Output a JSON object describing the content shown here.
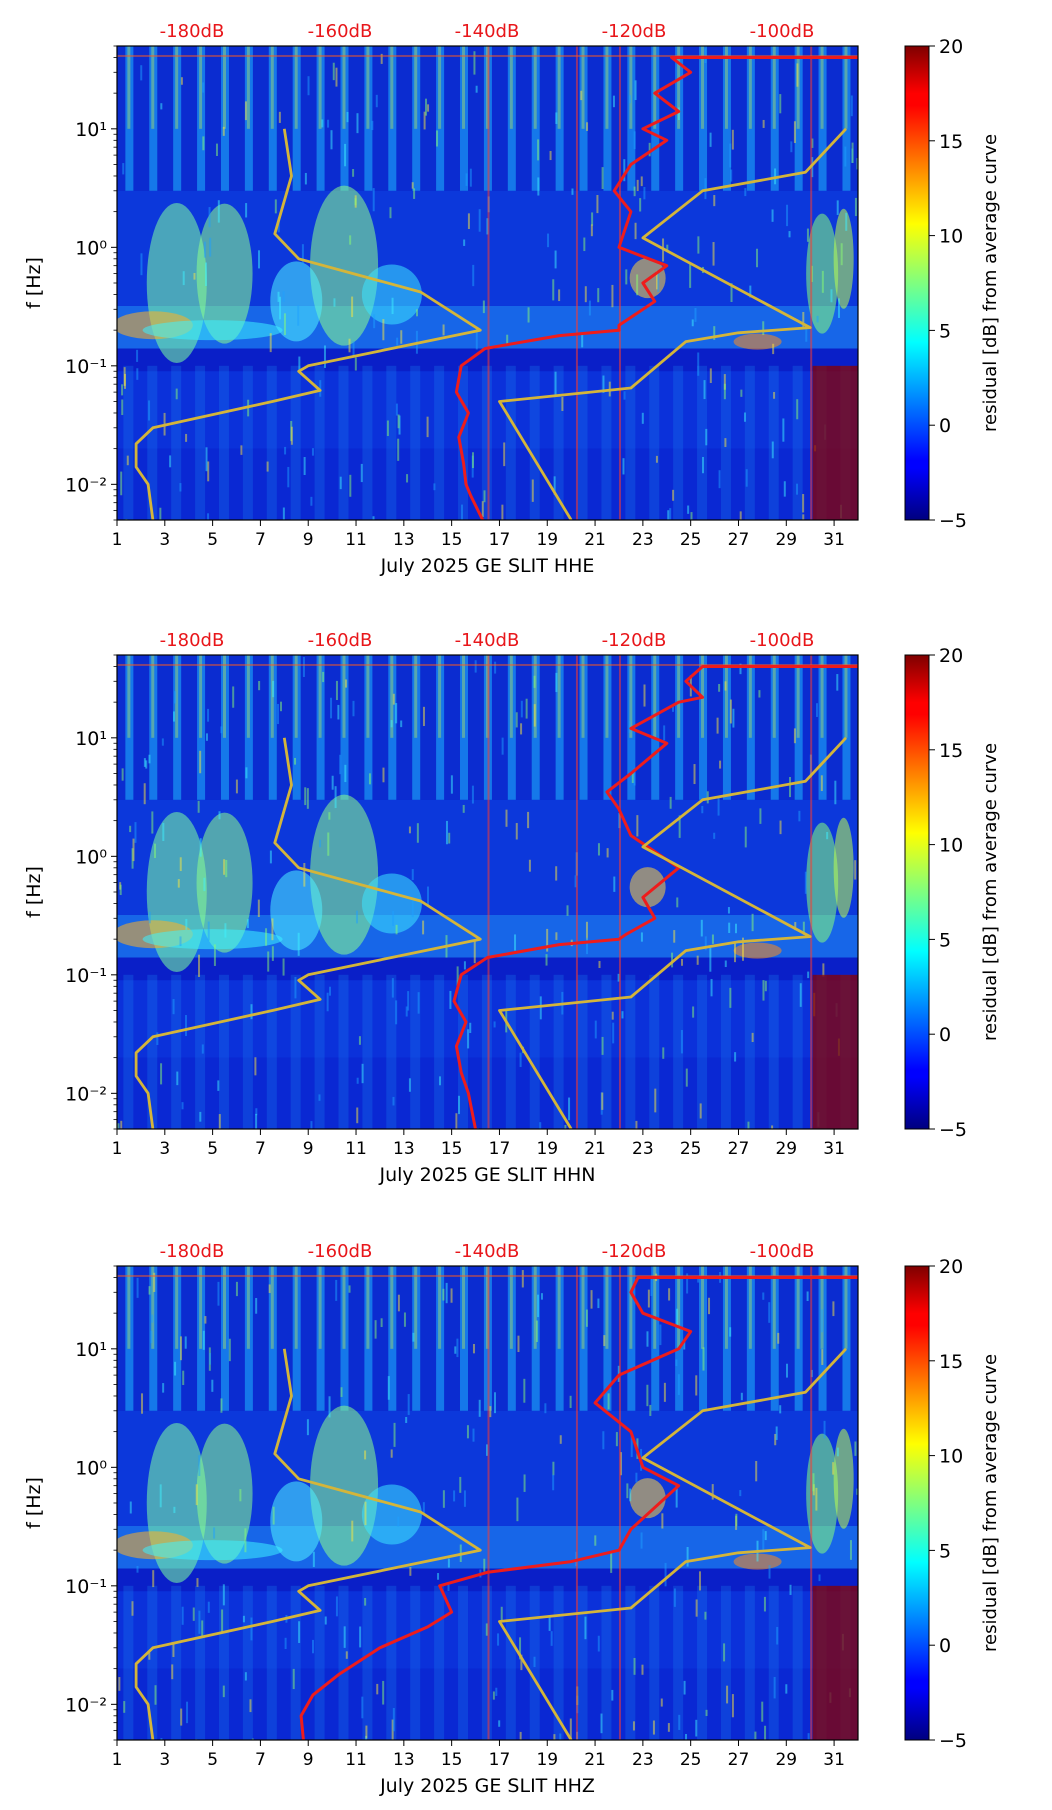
{
  "chart_data": [
    {
      "type": "heatmap",
      "xlabel": "July 2025 GE SLIT  HHE",
      "ylabel": "f [Hz]",
      "xticks": [
        "1",
        "3",
        "5",
        "7",
        "9",
        "11",
        "13",
        "15",
        "17",
        "19",
        "21",
        "23",
        "25",
        "27",
        "29",
        "31"
      ],
      "xlim": [
        1,
        32
      ],
      "yticks": [
        "10⁻²",
        "10⁻¹",
        "10⁰",
        "10¹"
      ],
      "ylim": [
        0.005,
        50
      ],
      "yscale": "log",
      "top_labels": [
        "-180dB",
        "-160dB",
        "-140dB",
        "-120dB",
        "-100dB"
      ],
      "colorbar": {
        "label": "residual [dB] from average curve",
        "ticks": [
          "−5",
          "0",
          "5",
          "10",
          "15",
          "20"
        ],
        "range": [
          -5,
          20
        ],
        "colormap": "jet"
      },
      "series": [
        {
          "color": "#d4b53a",
          "points": [
            [
              2.5,
              0.005
            ],
            [
              2.3,
              0.01
            ],
            [
              1.8,
              0.014
            ],
            [
              1.8,
              0.022
            ],
            [
              2.5,
              0.03
            ],
            [
              7.5,
              0.05
            ],
            [
              9.5,
              0.062
            ],
            [
              8.6,
              0.09
            ],
            [
              9.0,
              0.1
            ],
            [
              16.2,
              0.2
            ],
            [
              13.7,
              0.42
            ],
            [
              8.6,
              0.8
            ],
            [
              7.6,
              1.3
            ],
            [
              8.3,
              4.0
            ],
            [
              8.0,
              10.0
            ]
          ]
        },
        {
          "color": "#ee1c1c",
          "points": [
            [
              16.3,
              0.005
            ],
            [
              15.8,
              0.008
            ],
            [
              15.6,
              0.01
            ],
            [
              15.5,
              0.015
            ],
            [
              15.3,
              0.025
            ],
            [
              15.7,
              0.04
            ],
            [
              15.2,
              0.06
            ],
            [
              15.4,
              0.1
            ],
            [
              16.4,
              0.14
            ],
            [
              19.5,
              0.18
            ],
            [
              22.0,
              0.2
            ],
            [
              22.0,
              0.22
            ],
            [
              23.5,
              0.35
            ],
            [
              23.0,
              0.5
            ],
            [
              24.0,
              0.7
            ],
            [
              22.0,
              1.0
            ],
            [
              22.5,
              2.0
            ],
            [
              21.8,
              3.0
            ],
            [
              22.5,
              5.0
            ],
            [
              24.0,
              8.0
            ],
            [
              23.0,
              10.0
            ],
            [
              24.5,
              14.0
            ],
            [
              23.5,
              20.0
            ],
            [
              25.0,
              30.0
            ],
            [
              24.2,
              40.0
            ],
            [
              32,
              40.0
            ]
          ]
        },
        {
          "color": "#d4b53a",
          "points": [
            [
              20.0,
              0.005
            ],
            [
              17.0,
              0.05
            ],
            [
              22.5,
              0.065
            ],
            [
              24.8,
              0.16
            ],
            [
              27.0,
              0.19
            ],
            [
              30.0,
              0.21
            ],
            [
              23.0,
              1.2
            ],
            [
              25.5,
              3.0
            ],
            [
              29.8,
              4.3
            ],
            [
              31.5,
              10.0
            ]
          ]
        }
      ]
    },
    {
      "type": "heatmap",
      "xlabel": "July 2025 GE SLIT  HHN",
      "ylabel": "f [Hz]",
      "xticks": [
        "1",
        "3",
        "5",
        "7",
        "9",
        "11",
        "13",
        "15",
        "17",
        "19",
        "21",
        "23",
        "25",
        "27",
        "29",
        "31"
      ],
      "xlim": [
        1,
        32
      ],
      "yticks": [
        "10⁻²",
        "10⁻¹",
        "10⁰",
        "10¹"
      ],
      "ylim": [
        0.005,
        50
      ],
      "yscale": "log",
      "top_labels": [
        "-180dB",
        "-160dB",
        "-140dB",
        "-120dB",
        "-100dB"
      ],
      "colorbar": {
        "label": "residual [dB] from average curve",
        "ticks": [
          "−5",
          "0",
          "5",
          "10",
          "15",
          "20"
        ],
        "range": [
          -5,
          20
        ],
        "colormap": "jet"
      },
      "series": [
        {
          "color": "#d4b53a",
          "points": [
            [
              2.5,
              0.005
            ],
            [
              2.3,
              0.01
            ],
            [
              1.8,
              0.014
            ],
            [
              1.8,
              0.022
            ],
            [
              2.5,
              0.03
            ],
            [
              7.5,
              0.05
            ],
            [
              9.5,
              0.062
            ],
            [
              8.6,
              0.09
            ],
            [
              9.0,
              0.1
            ],
            [
              16.2,
              0.2
            ],
            [
              13.7,
              0.42
            ],
            [
              8.6,
              0.8
            ],
            [
              7.6,
              1.3
            ],
            [
              8.3,
              4.0
            ],
            [
              8.0,
              10.0
            ]
          ]
        },
        {
          "color": "#ee1c1c",
          "points": [
            [
              16.0,
              0.005
            ],
            [
              15.7,
              0.01
            ],
            [
              15.4,
              0.015
            ],
            [
              15.2,
              0.025
            ],
            [
              15.6,
              0.04
            ],
            [
              15.1,
              0.06
            ],
            [
              15.4,
              0.1
            ],
            [
              16.5,
              0.14
            ],
            [
              19.5,
              0.18
            ],
            [
              22.0,
              0.2
            ],
            [
              22.3,
              0.22
            ],
            [
              23.5,
              0.3
            ],
            [
              23.0,
              0.45
            ],
            [
              24.5,
              0.8
            ],
            [
              22.5,
              1.5
            ],
            [
              22.0,
              2.5
            ],
            [
              21.5,
              3.5
            ],
            [
              22.5,
              5.0
            ],
            [
              24.0,
              9.0
            ],
            [
              22.5,
              12.0
            ],
            [
              24.5,
              20.0
            ],
            [
              25.5,
              22.0
            ],
            [
              24.8,
              30.0
            ],
            [
              25.5,
              40.0
            ],
            [
              32,
              40.0
            ]
          ]
        },
        {
          "color": "#d4b53a",
          "points": [
            [
              20.0,
              0.005
            ],
            [
              17.0,
              0.05
            ],
            [
              22.5,
              0.065
            ],
            [
              24.8,
              0.16
            ],
            [
              27.0,
              0.19
            ],
            [
              30.0,
              0.21
            ],
            [
              23.0,
              1.2
            ],
            [
              25.5,
              3.0
            ],
            [
              29.8,
              4.3
            ],
            [
              31.5,
              10.0
            ]
          ]
        }
      ]
    },
    {
      "type": "heatmap",
      "xlabel": "July 2025 GE SLIT  HHZ",
      "ylabel": "f [Hz]",
      "xticks": [
        "1",
        "3",
        "5",
        "7",
        "9",
        "11",
        "13",
        "15",
        "17",
        "19",
        "21",
        "23",
        "25",
        "27",
        "29",
        "31"
      ],
      "xlim": [
        1,
        32
      ],
      "yticks": [
        "10⁻²",
        "10⁻¹",
        "10⁰",
        "10¹"
      ],
      "ylim": [
        0.005,
        50
      ],
      "yscale": "log",
      "top_labels": [
        "-180dB",
        "-160dB",
        "-140dB",
        "-120dB",
        "-100dB"
      ],
      "colorbar": {
        "label": "residual [dB] from average curve",
        "ticks": [
          "−5",
          "0",
          "5",
          "10",
          "15",
          "20"
        ],
        "range": [
          -5,
          20
        ],
        "colormap": "jet"
      },
      "series": [
        {
          "color": "#d4b53a",
          "points": [
            [
              2.5,
              0.005
            ],
            [
              2.3,
              0.01
            ],
            [
              1.8,
              0.014
            ],
            [
              1.8,
              0.022
            ],
            [
              2.5,
              0.03
            ],
            [
              7.5,
              0.05
            ],
            [
              9.5,
              0.062
            ],
            [
              8.6,
              0.09
            ],
            [
              9.0,
              0.1
            ],
            [
              16.2,
              0.2
            ],
            [
              13.7,
              0.42
            ],
            [
              8.6,
              0.8
            ],
            [
              7.6,
              1.3
            ],
            [
              8.3,
              4.0
            ],
            [
              8.0,
              10.0
            ]
          ]
        },
        {
          "color": "#ee1c1c",
          "points": [
            [
              8.8,
              0.005
            ],
            [
              8.7,
              0.008
            ],
            [
              9.2,
              0.012
            ],
            [
              10.3,
              0.018
            ],
            [
              12.0,
              0.03
            ],
            [
              14.0,
              0.045
            ],
            [
              15.0,
              0.06
            ],
            [
              14.5,
              0.1
            ],
            [
              16.5,
              0.13
            ],
            [
              20.0,
              0.16
            ],
            [
              22.0,
              0.2
            ],
            [
              22.5,
              0.3
            ],
            [
              24.5,
              0.7
            ],
            [
              23.0,
              1.0
            ],
            [
              22.5,
              2.0
            ],
            [
              21.0,
              3.5
            ],
            [
              22.0,
              6.0
            ],
            [
              24.5,
              10.0
            ],
            [
              25.0,
              14.0
            ],
            [
              23.0,
              20.0
            ],
            [
              22.5,
              30.0
            ],
            [
              22.8,
              40.0
            ],
            [
              32,
              40.0
            ]
          ]
        },
        {
          "color": "#d4b53a",
          "points": [
            [
              20.0,
              0.005
            ],
            [
              17.0,
              0.05
            ],
            [
              22.5,
              0.065
            ],
            [
              24.8,
              0.16
            ],
            [
              27.0,
              0.19
            ],
            [
              30.0,
              0.21
            ],
            [
              23.0,
              1.2
            ],
            [
              25.5,
              3.0
            ],
            [
              29.8,
              4.3
            ],
            [
              31.5,
              10.0
            ]
          ]
        }
      ]
    }
  ]
}
